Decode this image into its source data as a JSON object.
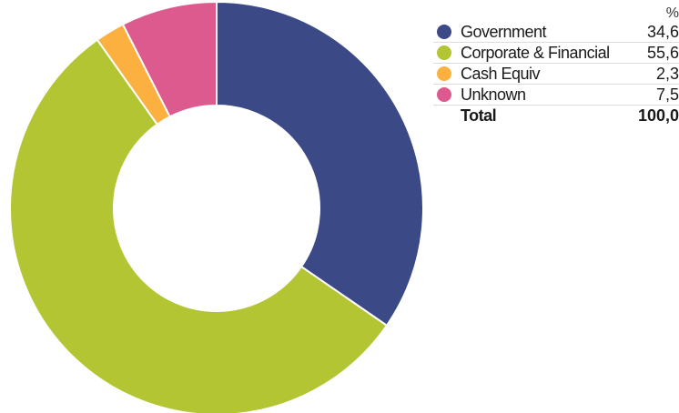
{
  "chart_data": {
    "type": "pie",
    "donut": true,
    "unit": "%",
    "categories": [
      "Government",
      "Corporate & Financial",
      "Cash Equiv",
      "Unknown"
    ],
    "values": [
      34.6,
      55.6,
      2.3,
      7.5
    ],
    "colors": [
      "#3b4a86",
      "#b4c534",
      "#fcb040",
      "#dc5a8e"
    ],
    "total_label": "Total",
    "total_value": "100,0",
    "value_labels": [
      "34,6",
      "55,6",
      "2,3",
      "7,5"
    ],
    "legend_position": "right"
  }
}
